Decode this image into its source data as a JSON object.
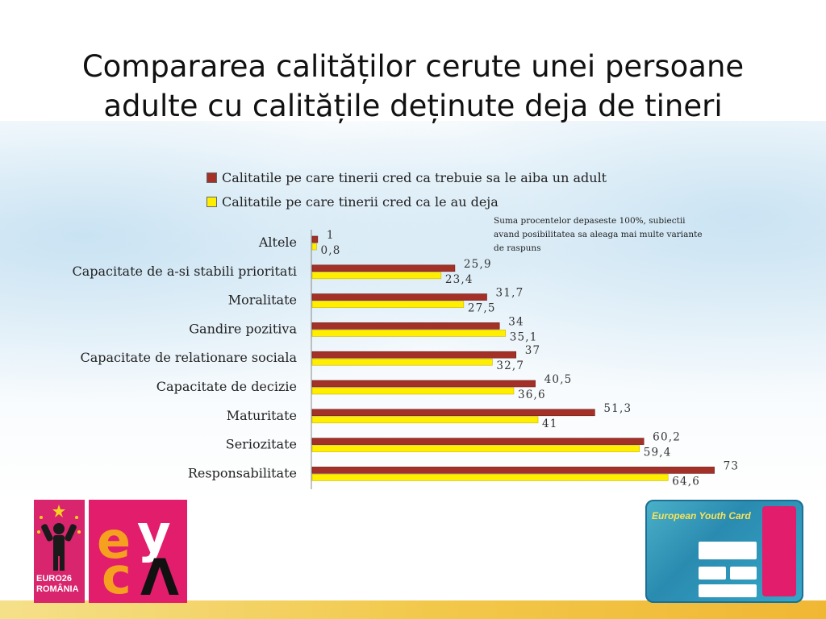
{
  "slide": {
    "title_line1": "Compararea calităților cerute unei persoane",
    "title_line2": "adulte cu calitățile deținute deja de tineri",
    "note_lines": [
      "Suma procentelor depaseste 100%, subiectii",
      "avand posibilitatea sa aleaga mai multe variante",
      "de raspuns"
    ],
    "logos": {
      "euro26": "EURO26",
      "euro26_country": "ROMÂNIA",
      "card_title": "European Youth Card"
    }
  },
  "colors": {
    "series1": "#a33128",
    "series2": "#ffee00",
    "footer": "#f2c94c",
    "eyca": "#e11d6c"
  },
  "chart_data": {
    "type": "bar",
    "orientation": "horizontal",
    "categories": [
      "Altele",
      "Capacitate de a-si stabili prioritati",
      "Moralitate",
      "Gandire pozitiva",
      "Capacitate de relationare sociala",
      "Capacitate de decizie",
      "Maturitate",
      "Seriozitate",
      "Responsabilitate"
    ],
    "series": [
      {
        "name": "Calitatile pe care tinerii cred ca trebuie sa le aiba un adult",
        "values": [
          1,
          25.9,
          31.7,
          34,
          37,
          40.5,
          51.3,
          60.2,
          73
        ],
        "labels": [
          "1",
          "25,9",
          "31,7",
          "34",
          "37",
          "40,5",
          "51,3",
          "60,2",
          "73"
        ]
      },
      {
        "name": "Calitatile pe care tinerii cred ca le au deja",
        "values": [
          0.8,
          23.4,
          27.5,
          35.1,
          32.7,
          36.6,
          41,
          59.4,
          64.6
        ],
        "labels": [
          "0,8",
          "23,4",
          "27,5",
          "35,1",
          "32,7",
          "36,6",
          "41",
          "59,4",
          "64,6"
        ]
      }
    ],
    "legend_position": "top",
    "grid": false,
    "xlim": [
      0,
      80
    ]
  }
}
